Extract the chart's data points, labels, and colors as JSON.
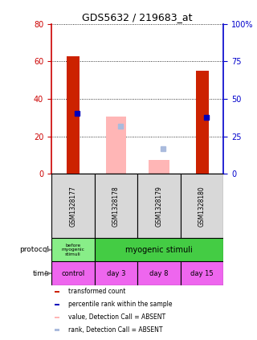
{
  "title": "GDS5632 / 219683_at",
  "samples": [
    "GSM1328177",
    "GSM1328178",
    "GSM1328179",
    "GSM1328180"
  ],
  "red_values": [
    62.5,
    0,
    0,
    55.0
  ],
  "blue_values": [
    40.5,
    0,
    0,
    37.5
  ],
  "pink_values": [
    0,
    30.5,
    7.5,
    0
  ],
  "lightblue_values": [
    0,
    31.5,
    16.5,
    0
  ],
  "ylim_left": [
    0,
    80
  ],
  "ylim_right": [
    0,
    100
  ],
  "yticks_left": [
    0,
    20,
    40,
    60,
    80
  ],
  "yticks_right": [
    0,
    25,
    50,
    75,
    100
  ],
  "ytick_right_labels": [
    "0",
    "25",
    "50",
    "75",
    "100%"
  ],
  "left_axis_color": "#cc0000",
  "right_axis_color": "#0000cc",
  "bar_width": 0.3,
  "protocol_labels": [
    "before\nmyogenic\nstimuli",
    "myogenic stimuli"
  ],
  "time_labels": [
    "control",
    "day 3",
    "day 8",
    "day 15"
  ],
  "protocol_color_first": "#88ee88",
  "protocol_color_second": "#44cc44",
  "time_color": "#ee66ee",
  "legend_items": [
    {
      "color": "#cc2200",
      "label": "transformed count"
    },
    {
      "color": "#0000bb",
      "label": "percentile rank within the sample"
    },
    {
      "color": "#ffb6b6",
      "label": "value, Detection Call = ABSENT"
    },
    {
      "color": "#aabbdd",
      "label": "rank, Detection Call = ABSENT"
    }
  ],
  "bg_color": "#d8d8d8",
  "plot_bg": "#ffffff"
}
